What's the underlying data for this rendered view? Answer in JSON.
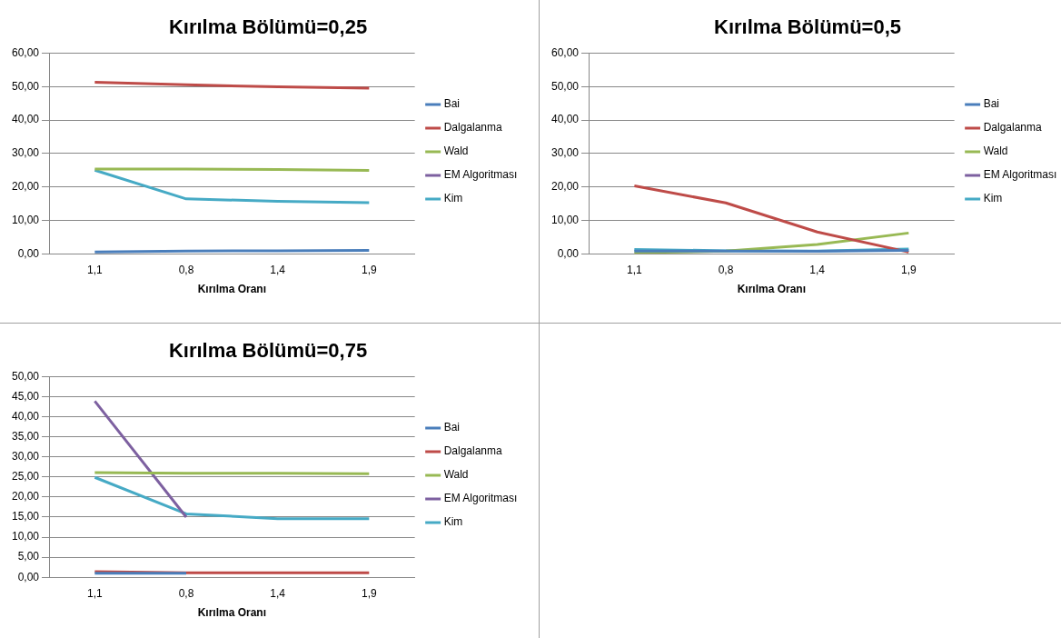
{
  "chart_data": [
    {
      "type": "line",
      "title": "Kırılma Bölümü=0,25",
      "xlabel": "Kırılma Oranı",
      "categories": [
        "1,1",
        "0,8",
        "1,4",
        "1,9"
      ],
      "ylim": [
        0,
        60
      ],
      "yticks": [
        {
          "value": 0,
          "label": "0,00"
        },
        {
          "value": 10,
          "label": "10,00"
        },
        {
          "value": 20,
          "label": "20,00"
        },
        {
          "value": 30,
          "label": "30,00"
        },
        {
          "value": 40,
          "label": "40,00"
        },
        {
          "value": 50,
          "label": "50,00"
        },
        {
          "value": 60,
          "label": "60,00"
        }
      ],
      "grid": "y",
      "legend": "right",
      "marker": "none",
      "series": [
        {
          "name": "Bai",
          "color": "#4a7ebb",
          "values": [
            0.5,
            0.8,
            0.9,
            1.0
          ]
        },
        {
          "name": "Dalgalanma",
          "color": "#be4b48",
          "values": [
            51.3,
            50.5,
            49.9,
            49.5
          ]
        },
        {
          "name": "Wald",
          "color": "#98b954",
          "values": [
            25.3,
            25.3,
            25.2,
            24.9
          ]
        },
        {
          "name": "EM Algoritması",
          "color": "#7d60a0",
          "values": [
            null,
            null,
            null,
            null
          ]
        },
        {
          "name": "Kim",
          "color": "#46aac5",
          "values": [
            25.0,
            16.4,
            15.7,
            15.3
          ]
        }
      ]
    },
    {
      "type": "line",
      "title": "Kırılma Bölümü=0,5",
      "xlabel": "Kırılma Oranı",
      "categories": [
        "1,1",
        "0,8",
        "1,4",
        "1,9"
      ],
      "ylim": [
        0,
        60
      ],
      "yticks": [
        {
          "value": 0,
          "label": "0,00"
        },
        {
          "value": 10,
          "label": "10,00"
        },
        {
          "value": 20,
          "label": "20,00"
        },
        {
          "value": 30,
          "label": "30,00"
        },
        {
          "value": 40,
          "label": "40,00"
        },
        {
          "value": 50,
          "label": "50,00"
        },
        {
          "value": 60,
          "label": "60,00"
        }
      ],
      "grid": "y",
      "legend": "right",
      "marker": "none",
      "series": [
        {
          "name": "Bai",
          "color": "#4a7ebb",
          "values": [
            0.8,
            0.8,
            0.7,
            1.0
          ]
        },
        {
          "name": "Dalgalanma",
          "color": "#be4b48",
          "values": [
            20.3,
            15.2,
            6.5,
            0.5
          ]
        },
        {
          "name": "Wald",
          "color": "#98b954",
          "values": [
            0.3,
            0.8,
            2.8,
            6.2
          ]
        },
        {
          "name": "EM Algoritması",
          "color": "#7d60a0",
          "values": [
            null,
            null,
            null,
            null
          ]
        },
        {
          "name": "Kim",
          "color": "#46aac5",
          "values": [
            1.3,
            0.9,
            0.8,
            1.4
          ]
        }
      ]
    },
    {
      "type": "line",
      "title": "Kırılma Bölümü=0,75",
      "xlabel": "Kırılma Oranı",
      "categories": [
        "1,1",
        "0,8",
        "1,4",
        "1,9"
      ],
      "ylim": [
        0,
        50
      ],
      "yticks": [
        {
          "value": 0,
          "label": "0,00"
        },
        {
          "value": 5,
          "label": "5,00"
        },
        {
          "value": 10,
          "label": "10,00"
        },
        {
          "value": 15,
          "label": "15,00"
        },
        {
          "value": 20,
          "label": "20,00"
        },
        {
          "value": 25,
          "label": "25,00"
        },
        {
          "value": 30,
          "label": "30,00"
        },
        {
          "value": 35,
          "label": "35,00"
        },
        {
          "value": 40,
          "label": "40,00"
        },
        {
          "value": 45,
          "label": "45,00"
        },
        {
          "value": 50,
          "label": "50,00"
        }
      ],
      "grid": "y",
      "legend": "right",
      "marker": "none",
      "series": [
        {
          "name": "Bai",
          "color": "#4a7ebb",
          "values": [
            1.0,
            1.0,
            null,
            null
          ]
        },
        {
          "name": "Dalgalanma",
          "color": "#be4b48",
          "values": [
            1.4,
            1.1,
            1.1,
            1.1
          ]
        },
        {
          "name": "Wald",
          "color": "#98b954",
          "values": [
            26.1,
            25.9,
            25.9,
            25.8
          ]
        },
        {
          "name": "EM Algoritması",
          "color": "#7d60a0",
          "values": [
            43.9,
            15.0,
            null,
            null
          ]
        },
        {
          "name": "Kim",
          "color": "#46aac5",
          "values": [
            24.9,
            15.8,
            14.6,
            14.6
          ]
        }
      ]
    }
  ]
}
